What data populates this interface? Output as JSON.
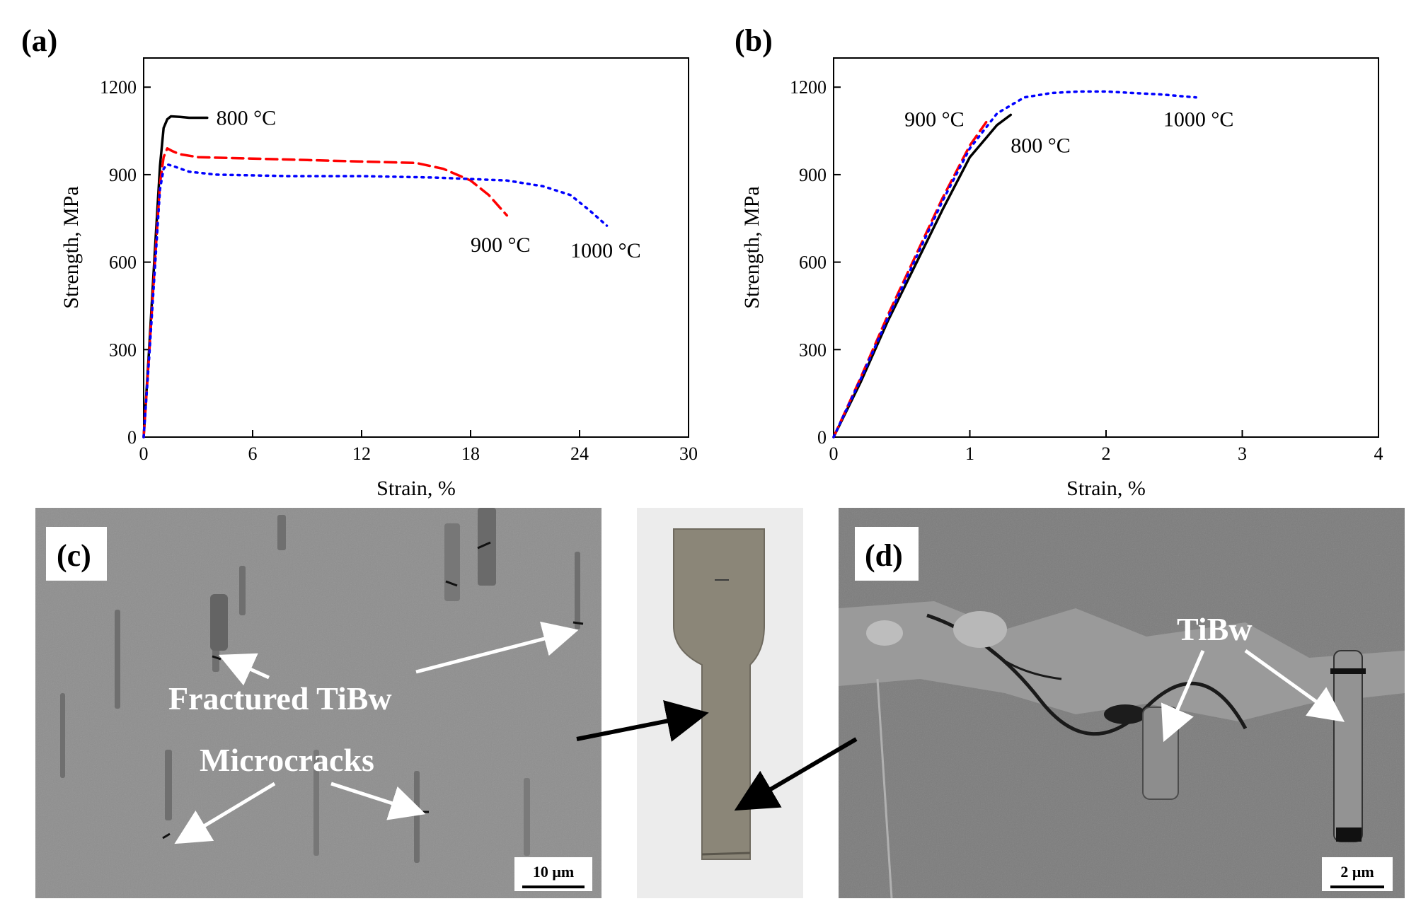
{
  "chart_data": [
    {
      "panel_label": "(a)",
      "type": "line",
      "xlabel": "Strain, %",
      "ylabel": "Strength, MPa",
      "xlim": [
        0,
        30
      ],
      "ylim": [
        0,
        1300
      ],
      "xticks": [
        0,
        6,
        12,
        18,
        24,
        30
      ],
      "yticks": [
        0,
        300,
        600,
        900,
        1200
      ],
      "grid": false,
      "series": [
        {
          "name": "800 °C",
          "color": "#000000",
          "dash": "solid",
          "x": [
            0,
            0.3,
            0.6,
            0.9,
            1.1,
            1.3,
            1.5,
            2.0,
            2.5,
            3.5
          ],
          "y": [
            0,
            300,
            620,
            930,
            1060,
            1090,
            1100,
            1098,
            1095,
            1095
          ]
        },
        {
          "name": "900 °C",
          "color": "#ff0000",
          "dash": "dashed",
          "x": [
            0,
            0.3,
            0.6,
            0.9,
            1.1,
            1.3,
            1.6,
            2.0,
            3.0,
            6.0,
            9.0,
            12.0,
            15.0,
            16.5,
            18.0,
            19.0,
            20.0
          ],
          "y": [
            0,
            280,
            580,
            870,
            960,
            990,
            980,
            970,
            960,
            955,
            950,
            945,
            940,
            920,
            880,
            830,
            760
          ]
        },
        {
          "name": "1000 °C",
          "color": "#0000ff",
          "dash": "dotted",
          "x": [
            0,
            0.3,
            0.6,
            0.9,
            1.1,
            1.3,
            1.6,
            2.5,
            4.0,
            8.0,
            12.0,
            16.0,
            20.0,
            22.0,
            23.5,
            24.5,
            25.5
          ],
          "y": [
            0,
            270,
            560,
            850,
            920,
            935,
            930,
            910,
            900,
            895,
            895,
            890,
            880,
            860,
            830,
            780,
            725
          ]
        }
      ],
      "annotations": [
        {
          "text": "800 °C",
          "x": 4.0,
          "y": 1095
        },
        {
          "text": "900 °C",
          "x": 18.0,
          "y": 660
        },
        {
          "text": "1000 °C",
          "x": 23.5,
          "y": 640
        }
      ]
    },
    {
      "panel_label": "(b)",
      "type": "line",
      "xlabel": "Strain, %",
      "ylabel": "Strength, MPa",
      "xlim": [
        0,
        4
      ],
      "ylim": [
        0,
        1300
      ],
      "xticks": [
        0,
        1,
        2,
        3,
        4
      ],
      "yticks": [
        0,
        300,
        600,
        900,
        1200
      ],
      "grid": false,
      "series": [
        {
          "name": "800 °C",
          "color": "#000000",
          "dash": "solid",
          "x": [
            0,
            0.2,
            0.4,
            0.6,
            0.8,
            1.0,
            1.2,
            1.3
          ],
          "y": [
            0,
            190,
            400,
            590,
            780,
            960,
            1070,
            1105
          ]
        },
        {
          "name": "900 °C",
          "color": "#ff0000",
          "dash": "dashed",
          "x": [
            0,
            0.2,
            0.4,
            0.6,
            0.8,
            1.0,
            1.12
          ],
          "y": [
            0,
            205,
            420,
            620,
            820,
            1000,
            1080
          ]
        },
        {
          "name": "1000 °C",
          "color": "#0000ff",
          "dash": "dotted",
          "x": [
            0,
            0.2,
            0.4,
            0.6,
            0.8,
            1.0,
            1.2,
            1.4,
            1.6,
            1.8,
            2.0,
            2.2,
            2.4,
            2.66
          ],
          "y": [
            0,
            200,
            410,
            610,
            810,
            990,
            1110,
            1165,
            1180,
            1185,
            1185,
            1180,
            1175,
            1165
          ]
        }
      ],
      "annotations": [
        {
          "text": "900 °C",
          "x": 0.52,
          "y": 1090
        },
        {
          "text": "800 °C",
          "x": 1.3,
          "y": 1000
        },
        {
          "text": "1000 °C",
          "x": 2.42,
          "y": 1090
        }
      ]
    }
  ],
  "micrographs": {
    "c": {
      "panel_label": "(c)",
      "labels": [
        "Fractured TiBw",
        "Microcracks"
      ],
      "scale_bar": "10 μm"
    },
    "d": {
      "panel_label": "(d)",
      "labels": [
        "TiBw"
      ],
      "scale_bar": "2 μm"
    }
  },
  "colors": {
    "sem_gray": "#8e8e8e",
    "sem_dark": "#7c7c7c",
    "specimen": "#8b8678",
    "background_photo": "#ececec"
  }
}
